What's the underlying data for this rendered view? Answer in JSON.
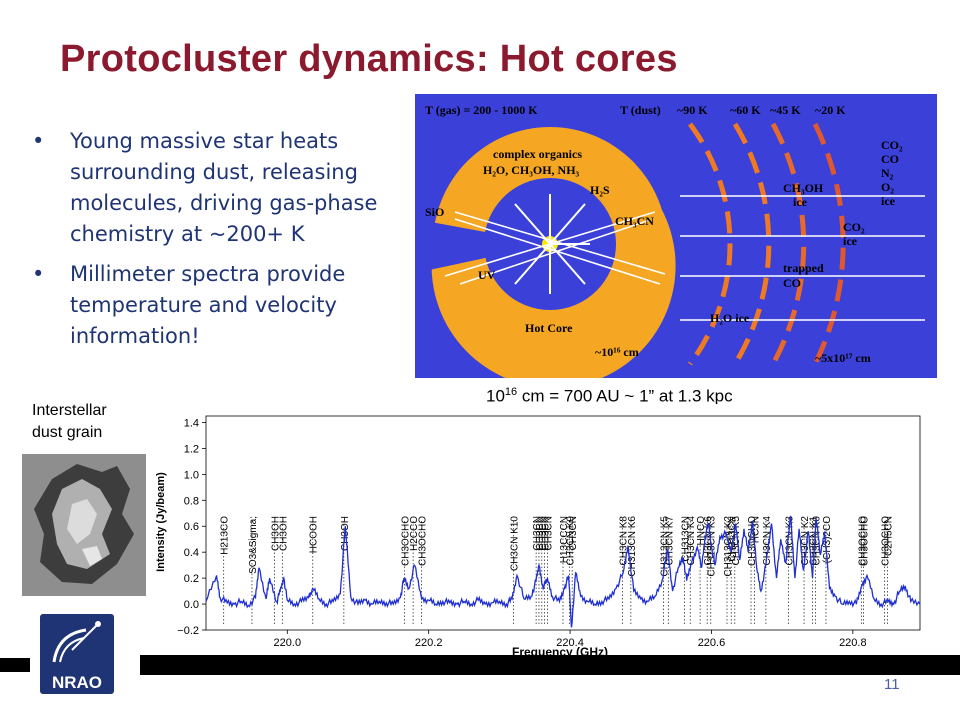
{
  "slide": {
    "title": "Protocluster dynamics:   Hot cores",
    "bullets": [
      "Young massive star heats surrounding dust, releasing molecules, driving gas-phase chemistry at ~200+ K",
      "Millimeter spectra provide temperature and velocity information!"
    ],
    "scale_text": {
      "base": "10",
      "exp": "16",
      "rest": " cm = 700 AU ~ 1” at 1.3 kpc"
    },
    "dust_label": "Interstellar\ndust grain",
    "page_number": "11",
    "logo_text": "NRAO"
  },
  "diagram": {
    "t_gas": "T (gas) = 200 - 1000 K",
    "t_dust": "T (dust)",
    "temps": [
      "~90 K",
      "~60 K",
      "~45 K",
      "~20 K"
    ],
    "inner_labels": [
      "complex organics",
      "H₂O, CH₃OH, NH₃",
      "H₂S",
      "CH₃CN"
    ],
    "sio": "SiO",
    "uv": "UV",
    "hot_core": "Hot Core",
    "r_inner": "~10¹⁶ cm",
    "r_outer": "~5x10¹⁷ cm",
    "ice_labels": [
      "CH₃OH",
      "ice",
      "CO₂",
      "ice",
      "trapped",
      "CO",
      "H₂O ice"
    ],
    "outer_species": [
      "CO₂",
      "CO",
      "N₂",
      "O₂",
      "ice"
    ],
    "colors": {
      "background": "#3a40d8",
      "core_orange": "#f5a623",
      "core_yellow": "#ffd23a",
      "ring_orange": "#f07a22"
    }
  },
  "chart_data": {
    "type": "line",
    "xlabel": "Frequency (GHz)",
    "ylabel": "Intensity (Jy/beam)",
    "xlim": [
      219.885,
      220.895
    ],
    "ylim": [
      -0.2,
      1.45
    ],
    "xticks": [
      220.0,
      220.2,
      220.4,
      220.6,
      220.8
    ],
    "xtick_labels": [
      "220.0",
      "220.2",
      "220.4",
      "220.6",
      "220.8"
    ],
    "yticks": [
      -0.2,
      0.0,
      0.2,
      0.4,
      0.6,
      0.8,
      1.0,
      1.2,
      1.4
    ],
    "ytick_labels": [
      "−0.2",
      "0.0",
      "0.2",
      "0.4",
      "0.6",
      "0.8",
      "1.0",
      "1.2",
      "1.4"
    ],
    "line_color": "#1f2fd0",
    "series": [
      {
        "x": [
          219.885,
          219.9,
          219.905,
          219.915,
          219.925,
          219.935,
          219.945,
          219.955,
          219.96,
          219.97,
          219.975,
          219.985,
          219.99,
          219.995,
          220.0,
          220.01,
          220.02,
          220.03,
          220.036,
          220.045,
          220.055,
          220.065,
          220.075,
          220.082,
          220.09,
          220.1,
          220.11,
          220.12,
          220.13,
          220.14,
          220.15,
          220.16,
          220.165,
          220.172,
          220.18,
          220.19,
          220.2,
          220.21,
          220.22,
          220.23,
          220.24,
          220.25,
          220.26,
          220.27,
          220.28,
          220.29,
          220.3,
          220.31,
          220.318,
          220.325,
          220.335,
          220.345,
          220.352,
          220.356,
          220.362,
          220.368,
          220.375,
          220.385,
          220.392,
          220.398,
          220.402,
          220.408,
          220.415,
          220.425,
          220.435,
          220.445,
          220.455,
          220.465,
          220.475,
          220.482,
          220.49,
          220.5,
          220.51,
          220.52,
          220.53,
          220.538,
          220.545,
          220.553,
          220.56,
          220.565,
          220.572,
          220.58,
          220.586,
          220.591,
          220.596,
          220.6,
          220.605,
          220.612,
          220.62,
          220.628,
          220.634,
          220.64,
          220.646,
          220.652,
          220.658,
          220.664,
          220.67,
          220.677,
          220.685,
          220.692,
          220.698,
          220.705,
          220.712,
          220.718,
          220.724,
          220.73,
          220.737,
          220.743,
          220.748,
          220.754,
          220.76,
          220.767,
          220.775,
          220.785,
          220.795,
          220.805,
          220.813,
          220.82,
          220.83,
          220.84,
          220.85,
          220.858,
          220.866,
          220.874,
          220.882,
          220.895
        ],
        "y": [
          0.02,
          0.22,
          0.05,
          0.01,
          0.0,
          0.02,
          -0.01,
          0.05,
          0.28,
          0.04,
          0.2,
          0.02,
          0.1,
          0.2,
          0.03,
          0.0,
          0.02,
          0.05,
          0.12,
          0.04,
          0.0,
          0.02,
          0.08,
          0.6,
          0.05,
          0.0,
          0.03,
          0.0,
          0.02,
          0.01,
          0.0,
          0.05,
          0.2,
          0.12,
          0.3,
          0.04,
          0.03,
          0.0,
          0.02,
          0.01,
          0.0,
          0.02,
          0.0,
          0.03,
          0.0,
          0.01,
          0.02,
          0.0,
          0.04,
          0.22,
          0.04,
          0.06,
          0.18,
          0.3,
          0.12,
          0.2,
          0.06,
          0.02,
          0.12,
          0.22,
          -0.18,
          0.24,
          0.06,
          0.02,
          0.0,
          0.02,
          0.04,
          0.12,
          0.24,
          0.45,
          0.1,
          0.04,
          0.02,
          0.06,
          0.18,
          0.42,
          0.1,
          0.28,
          0.36,
          0.18,
          0.32,
          0.44,
          0.28,
          0.52,
          0.62,
          0.44,
          0.3,
          0.52,
          0.54,
          0.4,
          0.62,
          0.34,
          0.58,
          0.4,
          0.64,
          0.28,
          0.1,
          0.3,
          0.62,
          0.2,
          0.5,
          0.32,
          0.68,
          0.2,
          0.58,
          0.26,
          0.56,
          0.2,
          0.66,
          0.38,
          0.56,
          0.12,
          0.06,
          0.0,
          0.02,
          0.0,
          0.14,
          0.22,
          0.04,
          0.0,
          0.02,
          0.0,
          0.1,
          0.14,
          0.02,
          0.0
        ]
      }
    ],
    "annotations": [
      {
        "x": 219.91,
        "label": "H213CO"
      },
      {
        "x": 219.95,
        "label": "SO3&Sigma;"
      },
      {
        "x": 219.982,
        "label": "CH3OH"
      },
      {
        "x": 219.993,
        "label": "CH3OH"
      },
      {
        "x": 220.036,
        "label": "HCOOH"
      },
      {
        "x": 220.08,
        "label": "CH3OH"
      },
      {
        "x": 220.166,
        "label": "CH3OCHO"
      },
      {
        "x": 220.178,
        "label": "H2CCO"
      },
      {
        "x": 220.19,
        "label": "CH3OCHO"
      },
      {
        "x": 220.32,
        "label": "CH3CN K10"
      },
      {
        "x": 220.352,
        "label": "CH3CN"
      },
      {
        "x": 220.356,
        "label": "CH3CN"
      },
      {
        "x": 220.36,
        "label": "CH3CN"
      },
      {
        "x": 220.364,
        "label": "CH3CN"
      },
      {
        "x": 220.368,
        "label": "CH3CN"
      },
      {
        "x": 220.39,
        "label": "H13CCCN"
      },
      {
        "x": 220.399,
        "label": "CH3CN K9"
      },
      {
        "x": 220.403,
        "label": "CH3CN"
      },
      {
        "x": 220.474,
        "label": "CH3CN K8"
      },
      {
        "x": 220.486,
        "label": "CH313CN K6"
      },
      {
        "x": 220.532,
        "label": "CH313CN K5"
      },
      {
        "x": 220.539,
        "label": "CH3CN K7"
      },
      {
        "x": 220.562,
        "label": "CH313CN"
      },
      {
        "x": 220.57,
        "label": "CH3CN K4"
      },
      {
        "x": 220.584,
        "label": "HNCO"
      },
      {
        "x": 220.594,
        "label": "CH3CN K6"
      },
      {
        "x": 220.599,
        "label": "CH313CN K3"
      },
      {
        "x": 220.622,
        "label": "CH313CN K2"
      },
      {
        "x": 220.628,
        "label": "CH313CN"
      },
      {
        "x": 220.633,
        "label": "CH3CN K5"
      },
      {
        "x": 220.656,
        "label": "CH3OCHO"
      },
      {
        "x": 220.661,
        "label": "HC3N"
      },
      {
        "x": 220.677,
        "label": "CH3CN K4"
      },
      {
        "x": 220.709,
        "label": "CH3CN K3"
      },
      {
        "x": 220.731,
        "label": "CH3CN K2"
      },
      {
        "x": 220.743,
        "label": "CH3CN K1"
      },
      {
        "x": 220.747,
        "label": "CH3CN K0"
      },
      {
        "x": 220.762,
        "label": "(CH3)2CO"
      },
      {
        "x": 220.812,
        "label": "CH3OCHO"
      },
      {
        "x": 220.815,
        "label": "CH3OCHO"
      },
      {
        "x": 220.845,
        "label": "CH3OCHO"
      },
      {
        "x": 220.849,
        "label": "C2H5CN"
      }
    ]
  }
}
